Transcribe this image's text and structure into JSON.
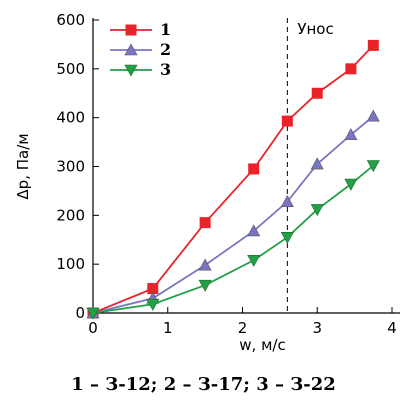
{
  "caption": "1 – З-12; 2 – З-17; 3 – З-22",
  "chart_data": {
    "type": "line",
    "xlabel": "w, м/с",
    "ylabel": "Δp, Па/м",
    "xlim": [
      0,
      4
    ],
    "ylim": [
      0,
      600
    ],
    "xticks": [
      "0",
      "1",
      "2",
      "3",
      "4"
    ],
    "yticks": [
      "0",
      "100",
      "200",
      "300",
      "400",
      "500",
      "600"
    ],
    "grid": false,
    "legend_position": "top-left",
    "annotation": {
      "label": "Унос",
      "x": 2.6,
      "style": "dashed vertical line"
    },
    "series": [
      {
        "name": "1",
        "color": "#e8232a",
        "marker": "square",
        "x": [
          0,
          0.8,
          1.5,
          2.15,
          2.6,
          3.0,
          3.45,
          3.75
        ],
        "y": [
          0,
          50,
          185,
          295,
          393,
          450,
          500,
          548
        ]
      },
      {
        "name": "2",
        "color": "#7a75c2",
        "marker": "triangle-up",
        "x": [
          0,
          0.8,
          1.5,
          2.15,
          2.6,
          3.0,
          3.45,
          3.75
        ],
        "y": [
          0,
          30,
          98,
          168,
          228,
          305,
          365,
          403
        ]
      },
      {
        "name": "3",
        "color": "#22a045",
        "marker": "triangle-down",
        "x": [
          0,
          0.8,
          1.5,
          2.15,
          2.6,
          3.0,
          3.45,
          3.75
        ],
        "y": [
          0,
          18,
          57,
          108,
          155,
          212,
          264,
          302
        ]
      }
    ]
  }
}
